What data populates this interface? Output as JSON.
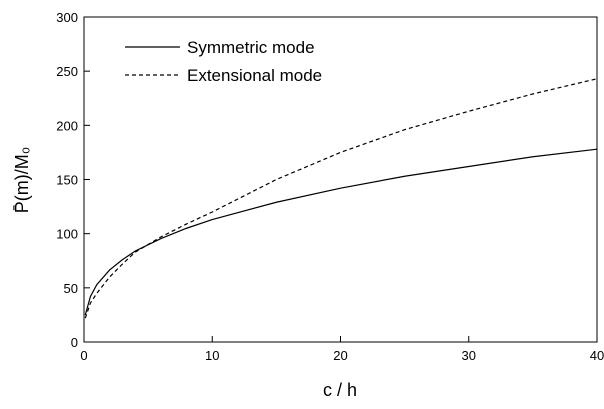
{
  "chart_data": {
    "type": "line",
    "xlabel": "c / h",
    "ylabel": "P̄(m)/M₀",
    "x": [
      0.1,
      0.5,
      1,
      2,
      3,
      4,
      6,
      8,
      10,
      15,
      20,
      25,
      30,
      35,
      40
    ],
    "series": [
      {
        "name": "Symmetric mode",
        "color": "#000000",
        "dash": false,
        "values": [
          24.9,
          42,
          53,
          66.5,
          76,
          84,
          95.5,
          105,
          113,
          129,
          142,
          153,
          162,
          171,
          178
        ]
      },
      {
        "name": "Extensional mode",
        "color": "#000000",
        "dash": true,
        "values": [
          22,
          36,
          45,
          60,
          72,
          83,
          97,
          109,
          120,
          150,
          175,
          196,
          213,
          229,
          243
        ]
      }
    ],
    "xlim": [
      0,
      40
    ],
    "xticks": [
      0,
      10,
      20,
      30,
      40
    ],
    "ylim": [
      0,
      300
    ],
    "yticks": [
      0,
      50,
      100,
      150,
      200,
      250,
      300
    ],
    "grid": false,
    "legend": "top-left"
  }
}
